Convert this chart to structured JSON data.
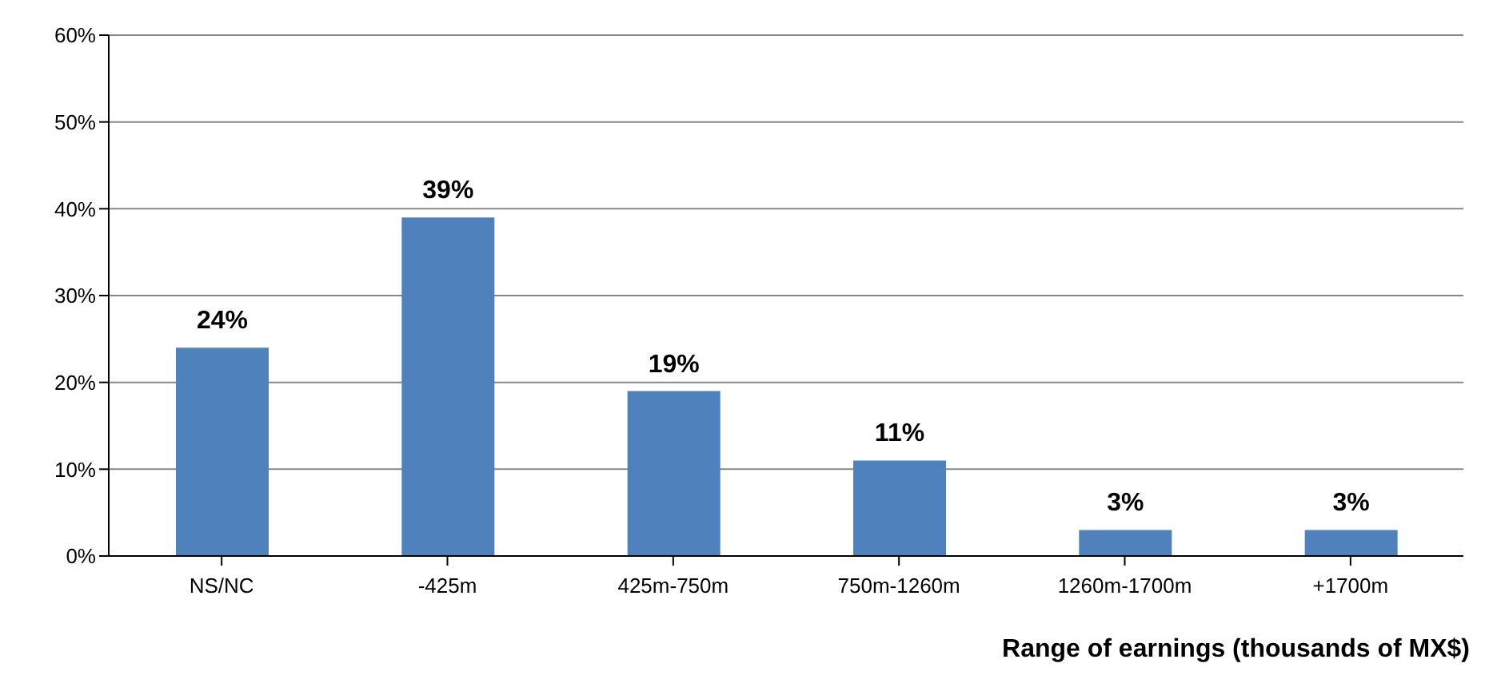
{
  "chart_data": {
    "type": "bar",
    "xlabel": "Range of earnings (thousands of MX$)",
    "categories": [
      "NS/NC",
      "-425m",
      "425m-750m",
      "750m-1260m",
      "1260m-1700m",
      "+1700m"
    ],
    "values": [
      24,
      39,
      19,
      11,
      3,
      3
    ],
    "value_labels": [
      "24%",
      "39%",
      "19%",
      "11%",
      "3%",
      "3%"
    ],
    "color": "#4f81bd",
    "ylim": [
      0,
      60
    ],
    "yticks": [
      {
        "value": 0,
        "label": "0%"
      },
      {
        "value": 10,
        "label": "10%"
      },
      {
        "value": 20,
        "label": "20%"
      },
      {
        "value": 30,
        "label": "30%"
      },
      {
        "value": 40,
        "label": "40%"
      },
      {
        "value": 50,
        "label": "50%"
      },
      {
        "value": 60,
        "label": "60%"
      }
    ],
    "grid": "y"
  }
}
